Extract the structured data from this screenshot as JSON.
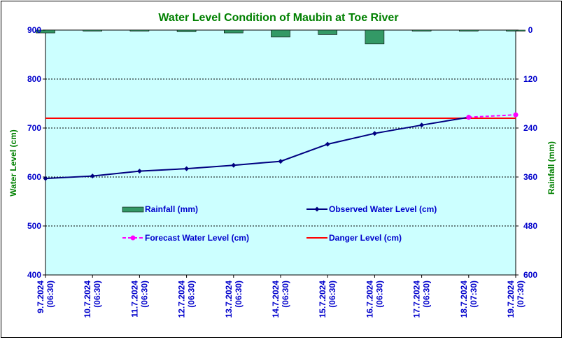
{
  "chart_data": {
    "type": "line",
    "title": "Water Level Condition of  Maubin at Toe River",
    "ylabel": "Water Level (cm)",
    "y2label": "Rainfall (mm)",
    "ylim": [
      400,
      900
    ],
    "y2lim": [
      0,
      600
    ],
    "y2_inverted": true,
    "yticks": [
      "900",
      "800",
      "700",
      "600",
      "500",
      "400"
    ],
    "y2ticks": [
      "0",
      "120",
      "240",
      "360",
      "480",
      "600"
    ],
    "categories": [
      "9.7.2024 (06:30)",
      "10.7.2024 (06:30)",
      "11.7.2024 (06:30)",
      "12.7.2024 (06:30)",
      "13.7.2024 (06:30)",
      "14.7.2024 (06:30)",
      "15.7.2024 (06:30)",
      "16.7.2024 (06:30)",
      "17.7.2024 (06:30)",
      "18.7.2024 (07:30)",
      "19.7.2024 (07:30)"
    ],
    "series": [
      {
        "name": "Observed Water Level (cm)",
        "kind": "line",
        "color": "#000080",
        "values": [
          597,
          602,
          612,
          617,
          624,
          632,
          667,
          689,
          706,
          722,
          null
        ]
      },
      {
        "name": "Forecast Water Level (cm)",
        "kind": "dashed-line",
        "color": "#ff00ff",
        "values": [
          null,
          null,
          null,
          null,
          null,
          null,
          null,
          null,
          null,
          722,
          727
        ]
      },
      {
        "name": "Danger Level (cm)",
        "kind": "hline",
        "color": "#ff0000",
        "value": 720
      },
      {
        "name": "Rainfall (mm)",
        "kind": "bar",
        "axis": "y2",
        "color": "#339966",
        "values": [
          7,
          0,
          0,
          4,
          7,
          17,
          11,
          34,
          2,
          0,
          0
        ]
      }
    ],
    "grid": true,
    "plot_background": "#ccffff"
  }
}
